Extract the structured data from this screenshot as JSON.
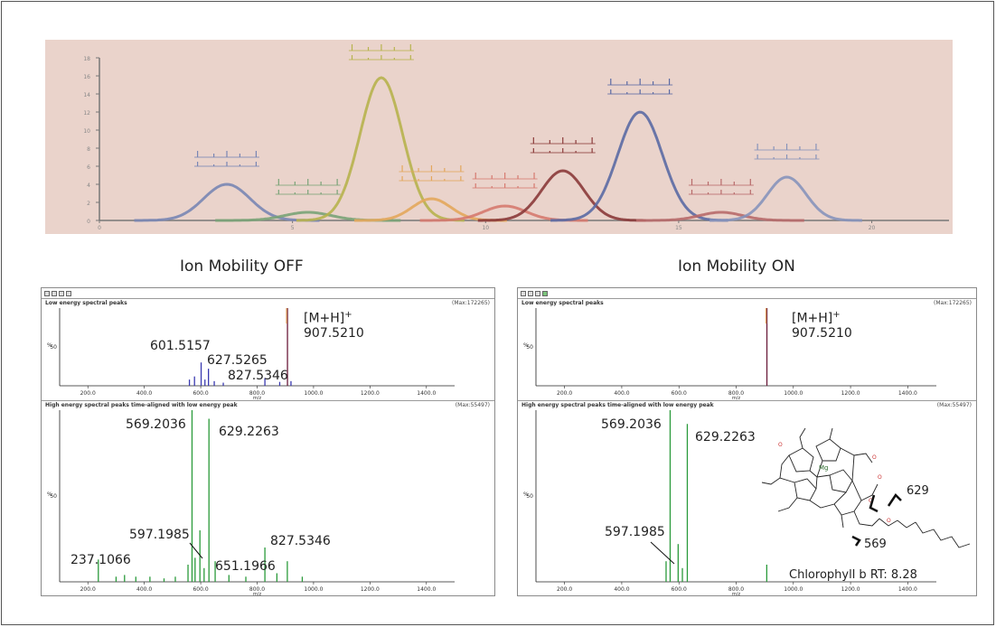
{
  "top_chart": {
    "chart_data": {
      "type": "line",
      "xlim": [
        0,
        22
      ],
      "ylim": [
        0,
        18
      ],
      "x_ticks": [
        0,
        5,
        10,
        15,
        20
      ],
      "y_ticks": [
        0,
        2,
        4,
        6,
        8,
        10,
        12,
        14,
        16,
        18
      ],
      "grid": false,
      "series": [
        {
          "color": "#7986b4",
          "center": 3.3,
          "height": 4.0,
          "width": 0.6
        },
        {
          "color": "#7aa377",
          "center": 5.4,
          "height": 0.9,
          "width": 0.6
        },
        {
          "color": "#b7b34e",
          "center": 7.3,
          "height": 15.8,
          "width": 0.55
        },
        {
          "color": "#e3a75c",
          "center": 8.6,
          "height": 2.4,
          "width": 0.5
        },
        {
          "color": "#d67a6f",
          "center": 10.5,
          "height": 1.6,
          "width": 0.55
        },
        {
          "color": "#8b3a3a",
          "center": 12.0,
          "height": 5.5,
          "width": 0.55
        },
        {
          "color": "#5b6aa4",
          "center": 14.0,
          "height": 12.0,
          "width": 0.58
        },
        {
          "color": "#b86a6a",
          "center": 16.1,
          "height": 0.9,
          "width": 0.55
        },
        {
          "color": "#8793bb",
          "center": 17.8,
          "height": 4.8,
          "width": 0.5
        }
      ]
    }
  },
  "labels": {
    "ion_off": "Ion Mobility OFF",
    "ion_on": "Ion Mobility ON"
  },
  "windows": [
    {
      "low": {
        "title": "Low energy spectral peaks",
        "max": "(Max:172265)",
        "y_axis_label": "%",
        "y_mid_tick": "50",
        "x_axis_label": "m/z",
        "chart_data": {
          "type": "bar",
          "xlim": [
            100,
            1500
          ],
          "ylim": [
            0,
            100
          ],
          "x_ticks": [
            "200.0",
            "400.0",
            "600.0",
            "800.0",
            "1000.0",
            "1200.0",
            "1400.0"
          ],
          "x_tick_values": [
            200,
            400,
            600,
            800,
            1000,
            1200,
            1400
          ],
          "peaks": [
            {
              "mz": 560,
              "intensity": 8,
              "color": "#3a3ab0"
            },
            {
              "mz": 578,
              "intensity": 12,
              "color": "#3a3ab0"
            },
            {
              "mz": 601.5157,
              "intensity": 30,
              "color": "#3a3ab0"
            },
            {
              "mz": 615,
              "intensity": 8,
              "color": "#3a3ab0"
            },
            {
              "mz": 627.5265,
              "intensity": 22,
              "color": "#3a3ab0"
            },
            {
              "mz": 648,
              "intensity": 6,
              "color": "#3a3ab0"
            },
            {
              "mz": 680,
              "intensity": 4,
              "color": "#3a3ab0"
            },
            {
              "mz": 827.5346,
              "intensity": 10,
              "color": "#3a3ab0"
            },
            {
              "mz": 880,
              "intensity": 5,
              "color": "#3a3ab0"
            },
            {
              "mz": 907.521,
              "intensity": 100,
              "color": "#6a1a3a"
            },
            {
              "mz": 920,
              "intensity": 6,
              "color": "#3a3ab0"
            }
          ],
          "annotations": [
            {
              "text": "601.5157"
            },
            {
              "text": "627.5265"
            },
            {
              "text": "827.5346"
            }
          ],
          "mh_label": {
            "line1": "[M+H]",
            "sup": "+",
            "line2": "907.5210"
          }
        }
      },
      "high": {
        "title": "High energy spectral peaks time-aligned with low energy peak",
        "max": "(Max:55497)",
        "y_axis_label": "%",
        "y_mid_tick": "50",
        "x_axis_label": "m/z",
        "chart_data": {
          "type": "bar",
          "xlim": [
            100,
            1500
          ],
          "ylim": [
            0,
            100
          ],
          "x_ticks": [
            "200.0",
            "400.0",
            "600.0",
            "800.0",
            "1000.0",
            "1200.0",
            "1400.0"
          ],
          "x_tick_values": [
            200,
            400,
            600,
            800,
            1000,
            1200,
            1400
          ],
          "peaks": [
            {
              "mz": 237.1066,
              "intensity": 13
            },
            {
              "mz": 300,
              "intensity": 3
            },
            {
              "mz": 330,
              "intensity": 4
            },
            {
              "mz": 370,
              "intensity": 3
            },
            {
              "mz": 420,
              "intensity": 3
            },
            {
              "mz": 470,
              "intensity": 2
            },
            {
              "mz": 510,
              "intensity": 3
            },
            {
              "mz": 555,
              "intensity": 10
            },
            {
              "mz": 569.2036,
              "intensity": 100
            },
            {
              "mz": 580,
              "intensity": 14
            },
            {
              "mz": 597.1985,
              "intensity": 30
            },
            {
              "mz": 612,
              "intensity": 8
            },
            {
              "mz": 629.2263,
              "intensity": 95
            },
            {
              "mz": 651.1966,
              "intensity": 12
            },
            {
              "mz": 700,
              "intensity": 4
            },
            {
              "mz": 760,
              "intensity": 3
            },
            {
              "mz": 827.5346,
              "intensity": 20
            },
            {
              "mz": 870,
              "intensity": 5
            },
            {
              "mz": 907,
              "intensity": 12
            },
            {
              "mz": 960,
              "intensity": 3
            }
          ],
          "annotations": [
            {
              "text": "569.2036"
            },
            {
              "text": "629.2263"
            },
            {
              "text": "597.1985"
            },
            {
              "text": "237.1066"
            },
            {
              "text": "651.1966"
            },
            {
              "text": "827.5346"
            }
          ]
        }
      }
    },
    {
      "low": {
        "title": "Low energy spectral peaks",
        "max": "(Max:172265)",
        "y_axis_label": "%",
        "y_mid_tick": "50",
        "x_axis_label": "m/z",
        "chart_data": {
          "type": "bar",
          "xlim": [
            100,
            1500
          ],
          "ylim": [
            0,
            100
          ],
          "x_ticks": [
            "200.0",
            "400.0",
            "600.0",
            "800.0",
            "1000.0",
            "1200.0",
            "1400.0"
          ],
          "x_tick_values": [
            200,
            400,
            600,
            800,
            1000,
            1200,
            1400
          ],
          "peaks": [
            {
              "mz": 907.521,
              "intensity": 100,
              "color": "#6a1a3a"
            }
          ],
          "annotations": [],
          "mh_label": {
            "line1": "[M+H]",
            "sup": "+",
            "line2": "907.5210"
          }
        }
      },
      "high": {
        "title": "High energy spectral peaks time-aligned with low energy peak",
        "max": "(Max:55497)",
        "y_axis_label": "%",
        "y_mid_tick": "50",
        "x_axis_label": "m/z",
        "chart_data": {
          "type": "bar",
          "xlim": [
            100,
            1500
          ],
          "ylim": [
            0,
            100
          ],
          "x_ticks": [
            "200.0",
            "400.0",
            "600.0",
            "800.0",
            "1000.0",
            "1200.0",
            "1400.0"
          ],
          "x_tick_values": [
            200,
            400,
            600,
            800,
            1000,
            1200,
            1400
          ],
          "peaks": [
            {
              "mz": 555,
              "intensity": 12
            },
            {
              "mz": 569.2036,
              "intensity": 100
            },
            {
              "mz": 597.1985,
              "intensity": 22
            },
            {
              "mz": 612,
              "intensity": 8
            },
            {
              "mz": 629.2263,
              "intensity": 92
            },
            {
              "mz": 907,
              "intensity": 10
            }
          ],
          "annotations": [
            {
              "text": "569.2036"
            },
            {
              "text": "629.2263"
            },
            {
              "text": "597.1985"
            }
          ],
          "structure_labels": {
            "frag_629": "629",
            "frag_569": "569",
            "compound": "Chlorophyll b RT: 8.28"
          }
        }
      }
    }
  ]
}
